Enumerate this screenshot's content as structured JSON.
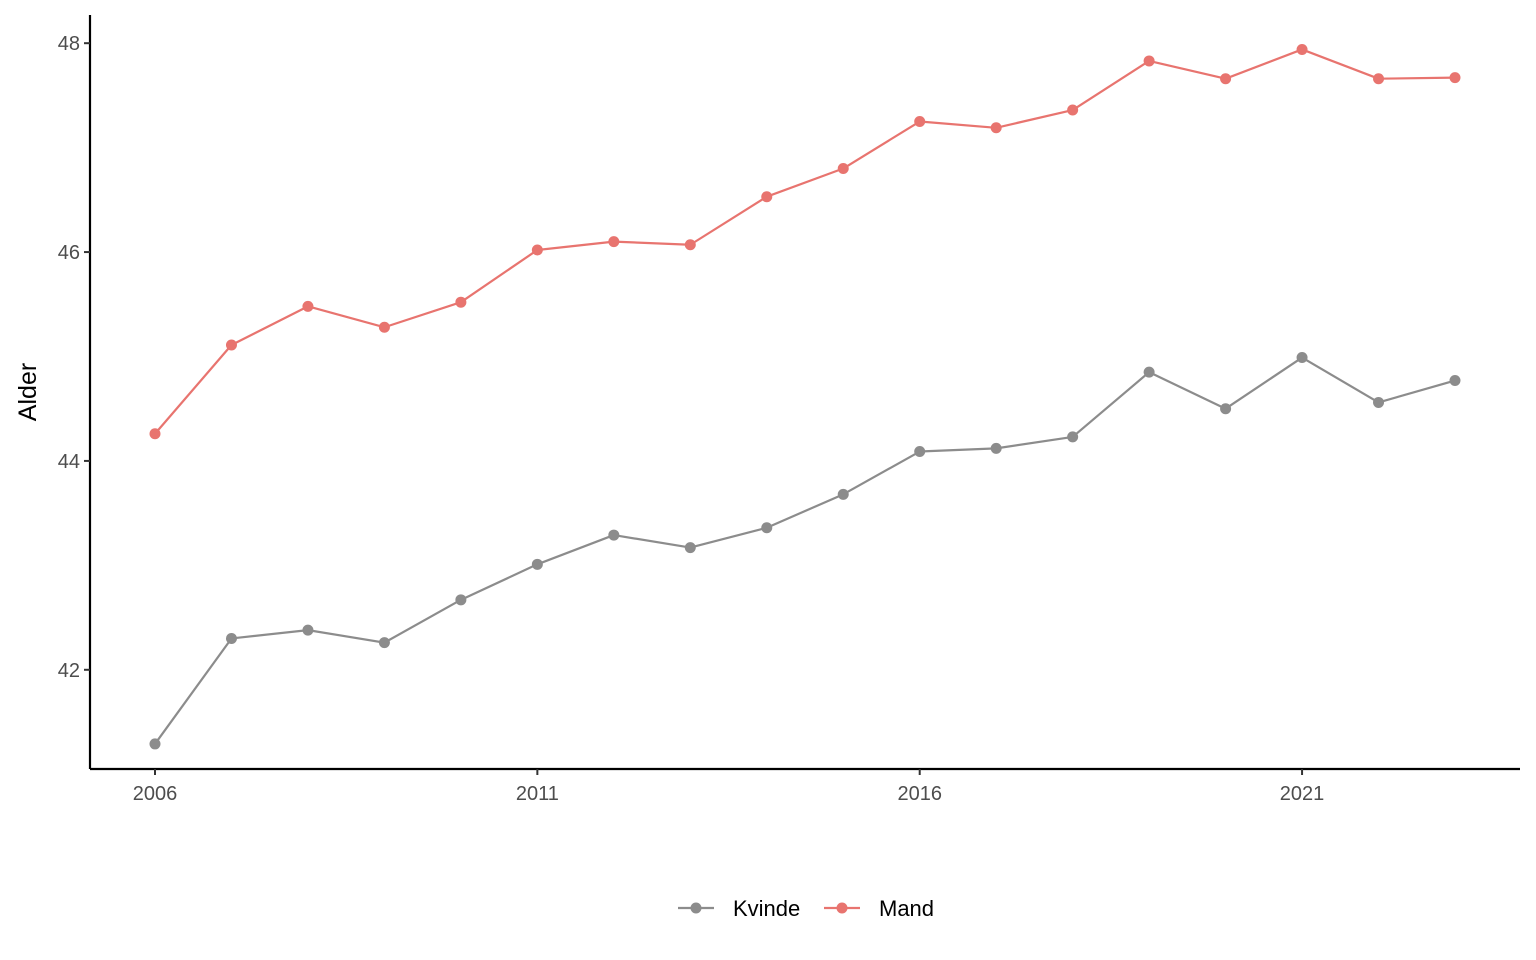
{
  "chart_data": {
    "type": "line",
    "title": "",
    "xlabel": "",
    "ylabel": "Alder",
    "x": [
      2006,
      2007,
      2008,
      2009,
      2010,
      2011,
      2012,
      2013,
      2014,
      2015,
      2016,
      2017,
      2018,
      2019,
      2020,
      2021,
      2022,
      2023
    ],
    "xlim": [
      2005.15,
      2023.85
    ],
    "ylim": [
      41.05,
      48.27
    ],
    "x_ticks": [
      2006,
      2011,
      2016,
      2021
    ],
    "x_tick_labels": [
      "2006",
      "2011",
      "2016",
      "2021"
    ],
    "y_ticks": [
      42,
      44,
      46,
      48
    ],
    "y_tick_labels": [
      "42",
      "44",
      "46",
      "48"
    ],
    "grid": false,
    "legend_position": "bottom",
    "series": [
      {
        "name": "Kvinde",
        "color": "#8c8c8c",
        "values": [
          41.29,
          42.3,
          42.38,
          42.26,
          42.67,
          43.01,
          43.29,
          43.17,
          43.36,
          43.68,
          44.09,
          44.12,
          44.23,
          44.85,
          44.5,
          44.99,
          44.56,
          44.77
        ]
      },
      {
        "name": "Mand",
        "color": "#e8746f",
        "values": [
          44.26,
          45.11,
          45.48,
          45.28,
          45.52,
          46.02,
          46.1,
          46.07,
          46.53,
          46.8,
          47.25,
          47.19,
          47.36,
          47.83,
          47.66,
          47.94,
          47.66,
          47.67
        ]
      }
    ]
  }
}
